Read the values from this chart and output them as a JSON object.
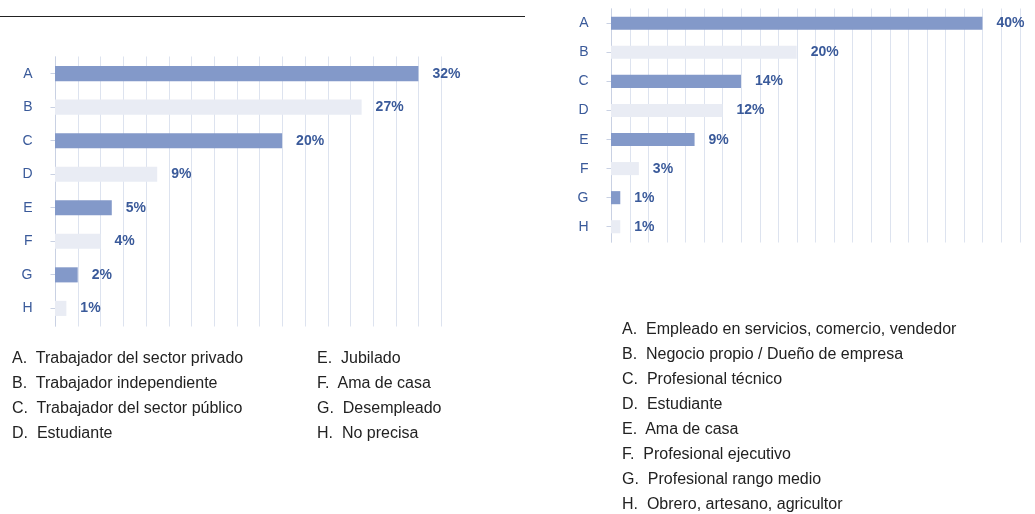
{
  "chart_data": [
    {
      "type": "bar",
      "orientation": "horizontal",
      "categories": [
        "A",
        "B",
        "C",
        "D",
        "E",
        "F",
        "G",
        "H"
      ],
      "values": [
        32,
        27,
        20,
        9,
        5,
        4,
        2,
        1
      ],
      "value_labels": [
        "32%",
        "27%",
        "20%",
        "9%",
        "5%",
        "4%",
        "2%",
        "1%"
      ],
      "colors": [
        "#8399c9",
        "#e9ecf4",
        "#8399c9",
        "#e9ecf4",
        "#8399c9",
        "#e9ecf4",
        "#8399c9",
        "#e9ecf4"
      ],
      "grid": "x",
      "tick_labels": "y",
      "annotations": [
        "A.  Trabajador del sector privado",
        "B.  Trabajador independiente",
        "C.  Trabajador del sector público",
        "D.  Estudiante",
        "E.  Jubilado",
        "F.  Ama de casa",
        "G.  Desempleado",
        "H.  No precisa"
      ]
    },
    {
      "type": "bar",
      "orientation": "horizontal",
      "categories": [
        "A",
        "B",
        "C",
        "D",
        "E",
        "F",
        "G",
        "H"
      ],
      "values": [
        40,
        20,
        14,
        12,
        9,
        3,
        1,
        1
      ],
      "value_labels": [
        "40%",
        "20%",
        "14%",
        "12%",
        "9%",
        "3%",
        "1%",
        "1%"
      ],
      "colors": [
        "#8399c9",
        "#e9ecf4",
        "#8399c9",
        "#e9ecf4",
        "#8399c9",
        "#e9ecf4",
        "#8399c9",
        "#e9ecf4"
      ],
      "grid": "x",
      "tick_labels": "y",
      "annotations": [
        "A.  Empleado en servicios, comercio, vendedor",
        "B.  Negocio propio / Dueño de empresa",
        "C.  Profesional técnico",
        "D.  Estudiante",
        "E.  Ama de casa",
        "F.  Profesional ejecutivo",
        "G.  Profesional rango medio",
        "H.  Obrero, artesano, agricultor"
      ]
    }
  ]
}
